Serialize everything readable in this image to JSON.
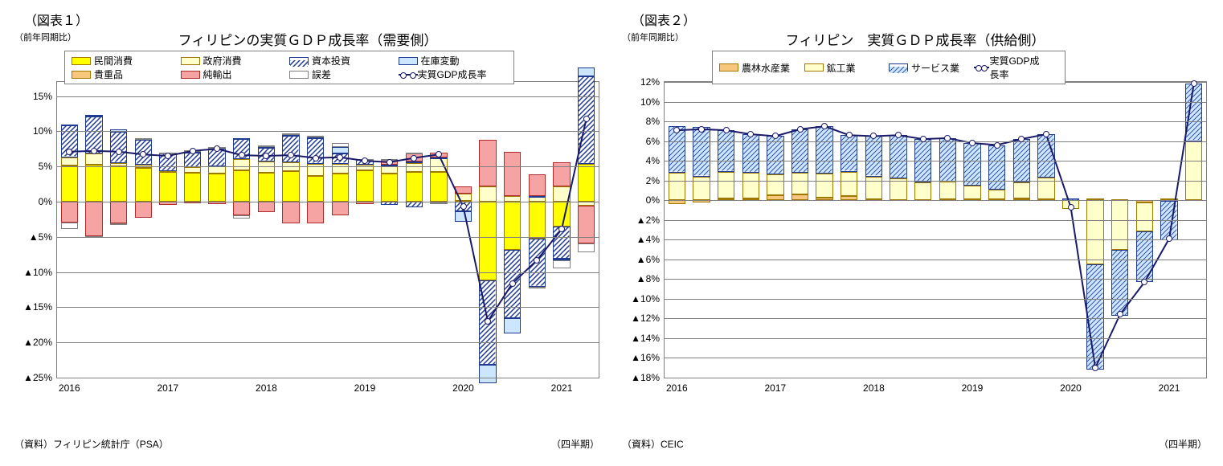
{
  "chart1": {
    "fig_label": "（図表１）",
    "ylabel_note": "（前年同期比）",
    "title": "フィリピンの実質ＧＤＰ成長率（需要側）",
    "source": "（資料）フィリピン統計庁（PSA）",
    "x_unit": "（四半期）",
    "ymin": -25,
    "ymax": 17,
    "ytick_step": 5,
    "xlabels": [
      "2016",
      "2017",
      "2018",
      "2019",
      "2020",
      "2021"
    ],
    "colors": {
      "民間消費": {
        "fill": "#ffff00",
        "border": "#a07800"
      },
      "政府消費": {
        "fill": "#ffffcc",
        "border": "#a07800"
      },
      "資本投資": {
        "fill": "#ffffff",
        "border": "#1f3a93",
        "hatch": "diag-blue"
      },
      "在庫変動": {
        "fill": "#cce6ff",
        "border": "#1f3a93"
      },
      "貴重品": {
        "fill": "#f7c77e",
        "border": "#a07800"
      },
      "純輸出": {
        "fill": "#f5a3a3",
        "border": "#b02a2a"
      },
      "誤差": {
        "fill": "#ffffff",
        "border": "#808080"
      },
      "line": "#1a1a6a"
    },
    "legend_layout": [
      [
        "民間消費",
        "政府消費",
        "資本投資",
        "在庫変動"
      ],
      [
        "貴重品",
        "純輸出",
        "誤差",
        "実質GDP成長率"
      ]
    ],
    "n_periods": 22,
    "gdp": [
      7.1,
      7.2,
      7.1,
      6.7,
      6.5,
      7.2,
      7.5,
      6.6,
      6.5,
      6.6,
      6.2,
      6.3,
      5.8,
      5.6,
      6.2,
      6.7,
      -0.7,
      -17.0,
      -11.6,
      -8.3,
      -3.9,
      11.8
    ],
    "stacks": [
      {
        "name": "民間消費",
        "v": [
          5.1,
          5.2,
          5.0,
          4.8,
          4.2,
          4.1,
          4.0,
          4.4,
          4.1,
          4.3,
          3.6,
          4.0,
          4.4,
          4.0,
          4.2,
          4.2,
          0.1,
          -11.2,
          -6.8,
          -5.3,
          -3.5,
          5.4
        ]
      },
      {
        "name": "政府消費",
        "v": [
          1.2,
          1.6,
          0.5,
          0.5,
          0.1,
          0.8,
          1.0,
          1.7,
          1.6,
          1.3,
          1.8,
          1.4,
          0.8,
          1.1,
          1.3,
          2.0,
          1.0,
          2.2,
          0.8,
          0.7,
          2.2,
          -0.6
        ]
      },
      {
        "name": "資本投資",
        "v": [
          4.6,
          5.3,
          4.4,
          3.5,
          2.6,
          2.1,
          2.5,
          2.8,
          1.9,
          3.8,
          3.6,
          1.4,
          0.7,
          -0.5,
          -0.8,
          -0.1,
          -1.4,
          -12.0,
          -9.7,
          -6.8,
          -4.6,
          12.4
        ]
      },
      {
        "name": "在庫変動",
        "v": [
          0.1,
          0.2,
          0.4,
          0.1,
          0.0,
          0.1,
          0.2,
          0.1,
          0.3,
          0.2,
          0.1,
          1.0,
          0.1,
          0.1,
          0.2,
          0.1,
          -1.5,
          -2.6,
          -2.2,
          0.1,
          -0.2,
          1.2
        ]
      },
      {
        "name": "貴重品",
        "v": [
          0.0,
          0.0,
          0.0,
          0.0,
          0.0,
          0.0,
          0.0,
          0.0,
          0.0,
          0.0,
          0.0,
          0.0,
          0.0,
          0.0,
          0.0,
          0.0,
          0.0,
          0.0,
          0.0,
          0.0,
          0.0,
          0.0
        ]
      },
      {
        "name": "純輸出",
        "v": [
          -3.0,
          -4.9,
          -3.1,
          -2.3,
          -0.5,
          -0.1,
          -0.3,
          -2.0,
          -1.5,
          -3.1,
          -3.1,
          -2.0,
          -0.3,
          0.8,
          1.2,
          0.7,
          1.1,
          6.6,
          6.3,
          3.1,
          3.4,
          -5.3
        ]
      },
      {
        "name": "誤差",
        "v": [
          -0.9,
          -0.2,
          -0.1,
          0.1,
          0.1,
          0.2,
          0.1,
          -0.4,
          0.1,
          0.1,
          0.2,
          0.5,
          0.1,
          0.1,
          0.1,
          -0.2,
          0.0,
          0.0,
          0.0,
          -0.1,
          -1.2,
          -1.3
        ]
      }
    ]
  },
  "chart2": {
    "fig_label": "（図表２）",
    "ylabel_note": "（前年同期比）",
    "title": "フィリピン　実質ＧＤＰ成長率（供給側）",
    "source": "（資料）CEIC",
    "x_unit": "（四半期）",
    "ymin": -18,
    "ymax": 12,
    "ytick_step": 2,
    "xlabels": [
      "2016",
      "2017",
      "2018",
      "2019",
      "2020",
      "2021"
    ],
    "colors": {
      "農林水産業": {
        "fill": "#f7c77e",
        "border": "#a07800"
      },
      "鉱工業": {
        "fill": "#ffffcc",
        "border": "#a07800"
      },
      "サービス業": {
        "fill": "#cce6ff",
        "border": "#1f3a93",
        "hatch": "diag-lblue"
      },
      "line": "#1a1a6a"
    },
    "legend_layout": [
      [
        "農林水産業",
        "鉱工業",
        "サービス業",
        "実質GDP成長率"
      ]
    ],
    "n_periods": 22,
    "gdp": [
      7.1,
      7.2,
      7.1,
      6.7,
      6.5,
      7.2,
      7.5,
      6.6,
      6.5,
      6.6,
      6.2,
      6.3,
      5.8,
      5.6,
      6.2,
      6.7,
      -0.7,
      -17.0,
      -11.6,
      -8.3,
      -3.9,
      11.8
    ],
    "stacks": [
      {
        "name": "農林水産業",
        "v": [
          -0.4,
          -0.2,
          0.2,
          0.2,
          0.5,
          0.6,
          0.3,
          0.4,
          0.1,
          0.0,
          0.0,
          0.1,
          0.1,
          0.1,
          0.2,
          0.1,
          -0.0,
          0.2,
          0.1,
          -0.2,
          -0.1,
          0.0
        ]
      },
      {
        "name": "鉱工業",
        "v": [
          2.8,
          2.4,
          2.7,
          2.6,
          2.1,
          2.2,
          2.4,
          2.5,
          2.3,
          2.2,
          1.8,
          1.8,
          1.4,
          1.0,
          1.6,
          2.2,
          -0.9,
          -6.5,
          -5.0,
          -3.0,
          0.2,
          6.0
        ]
      },
      {
        "name": "サービス業",
        "v": [
          4.7,
          5.0,
          4.2,
          3.9,
          3.9,
          4.4,
          4.8,
          3.7,
          4.1,
          4.4,
          4.4,
          4.4,
          4.3,
          4.5,
          4.4,
          4.4,
          0.2,
          -10.7,
          -6.7,
          -5.1,
          -4.0,
          5.8
        ]
      }
    ]
  }
}
